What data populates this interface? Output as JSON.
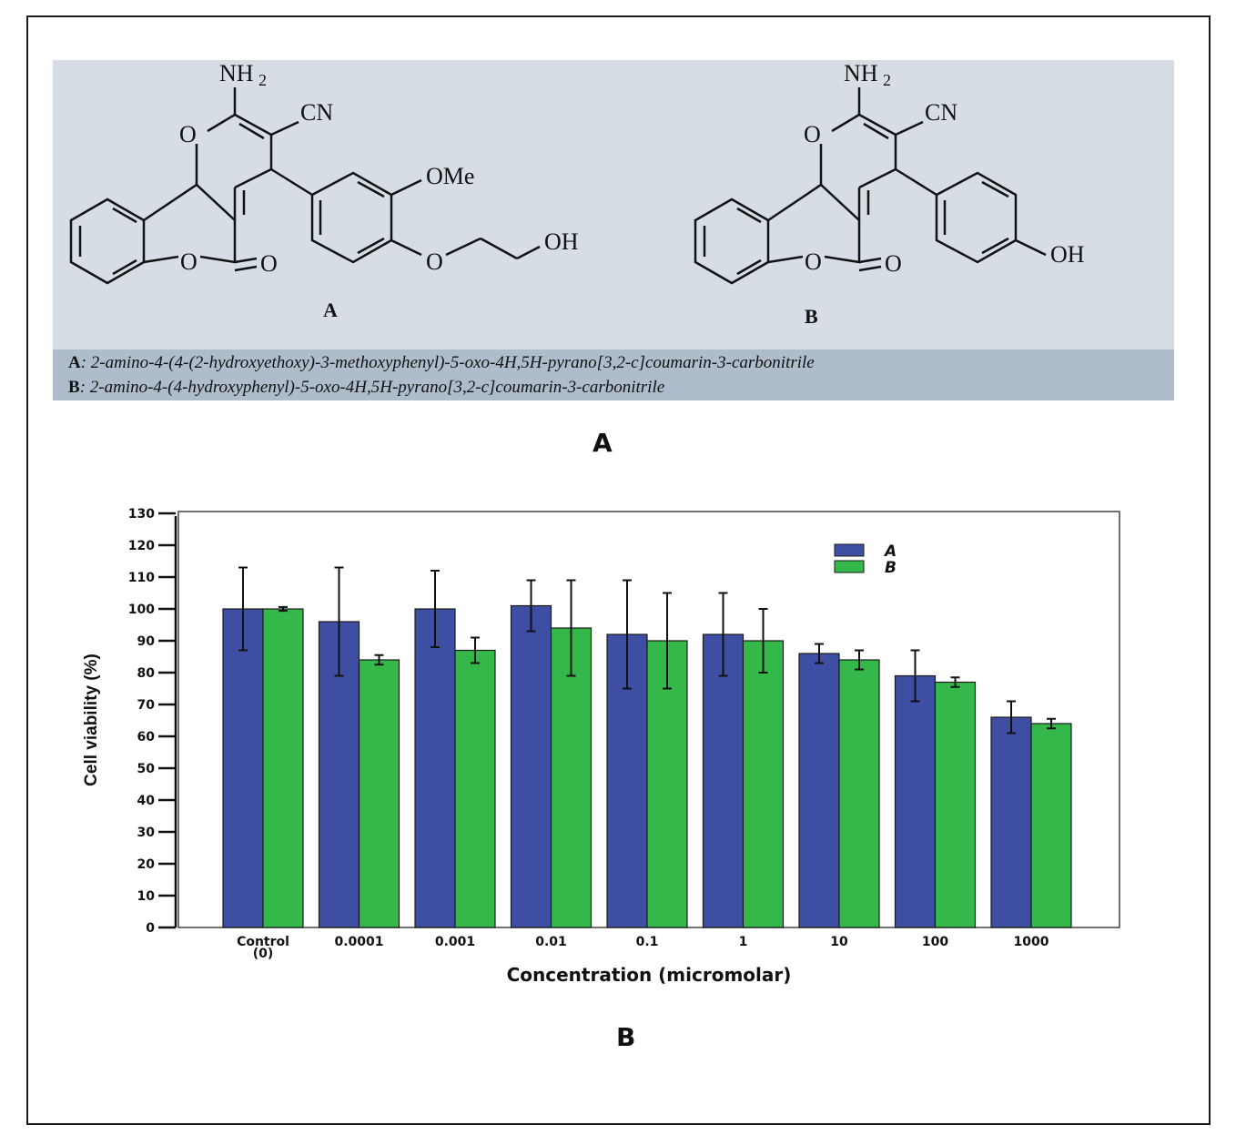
{
  "figure": {
    "panel_a_label": "A",
    "panel_b_label": "B"
  },
  "structures": {
    "compound_a": {
      "label": "A",
      "groups": {
        "amine": "NH",
        "amine_sub": "2",
        "nitrile": "CN",
        "methoxy": "OMe",
        "hydroxyl": "OH",
        "ring_oxygen": "O",
        "carbonyl_oxygen": "O"
      }
    },
    "compound_b": {
      "label": "B",
      "groups": {
        "amine": "NH",
        "amine_sub": "2",
        "nitrile": "CN",
        "hydroxyl": "OH",
        "ring_oxygen": "O",
        "carbonyl_oxygen": "O"
      }
    }
  },
  "captions": {
    "a_key": "A",
    "a_text": ": 2-amino-4-(4-(2-hydroxyethoxy)-3-methoxyphenyl)-5-oxo-4H,5H-pyrano[3,2-c]coumarin-3-carbonitrile",
    "b_key": "B",
    "b_text": ": 2-amino-4-(4-hydroxyphenyl)-5-oxo-4H,5H-pyrano[3,2-c]coumarin-3-carbonitrile"
  },
  "colors": {
    "series_a": "#3e4fa3",
    "series_b": "#35b84a",
    "panel_bg": "#d7dde5",
    "caption_bg": "#aebccb"
  },
  "chart_data": {
    "type": "bar",
    "title": "",
    "xlabel": "Concentration (micromolar)",
    "ylabel": "Cell viability (%)",
    "ylim": [
      0,
      130
    ],
    "yticks": [
      0,
      10,
      20,
      30,
      40,
      50,
      60,
      70,
      80,
      90,
      100,
      110,
      120,
      130
    ],
    "categories": [
      "Control|(0)",
      "0.0001",
      "0.001",
      "0.01",
      "0.1",
      "1",
      "10",
      "100",
      "1000"
    ],
    "series": [
      {
        "name": "A",
        "values": [
          100,
          96,
          100,
          101,
          92,
          92,
          86,
          79,
          66
        ],
        "error": [
          13,
          17,
          12,
          8,
          17,
          13,
          3,
          8,
          5
        ]
      },
      {
        "name": "B",
        "values": [
          100,
          84,
          87,
          94,
          90,
          90,
          84,
          77,
          64
        ],
        "error": [
          0.6,
          1.5,
          4,
          15,
          15,
          10,
          3,
          1.5,
          1.5
        ]
      }
    ],
    "legend_position": "top-right",
    "grid": false
  }
}
